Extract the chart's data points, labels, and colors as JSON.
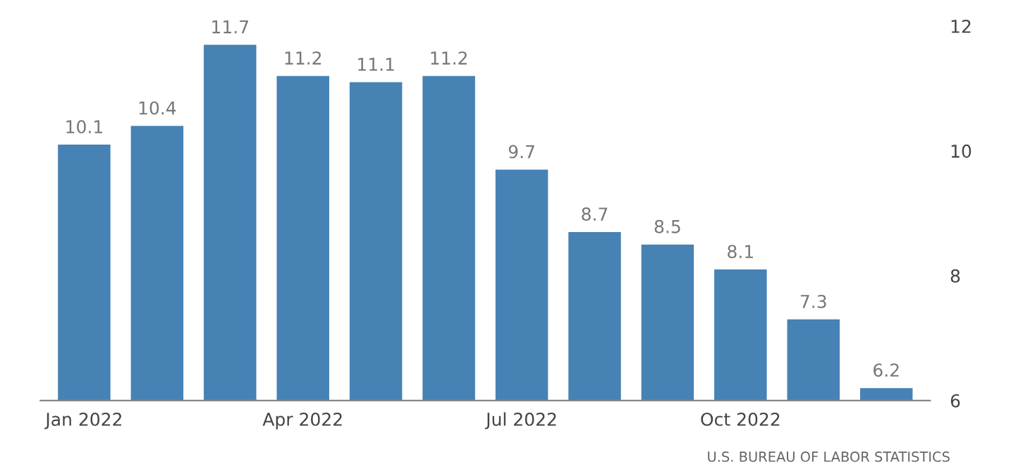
{
  "chart_data": {
    "type": "bar",
    "categories": [
      "Jan 2022",
      null,
      null,
      "Apr 2022",
      null,
      null,
      "Jul 2022",
      null,
      null,
      "Oct 2022",
      null,
      null
    ],
    "values": [
      10.1,
      10.4,
      11.7,
      11.2,
      11.1,
      11.2,
      9.7,
      8.7,
      8.5,
      8.1,
      7.3,
      6.2
    ],
    "color": "#4682b4",
    "ylim": [
      6,
      12
    ],
    "yticks": [
      6,
      8,
      10,
      12
    ],
    "data_labels": true,
    "grid": false,
    "legend": false,
    "annotations": [
      "U.S. BUREAU OF LABOR STATISTICS"
    ]
  }
}
